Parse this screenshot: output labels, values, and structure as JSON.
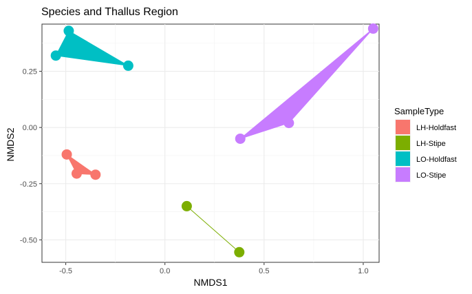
{
  "chart_data": {
    "type": "scatter",
    "title": "Species and Thallus Region",
    "xlabel": "NMDS1",
    "ylabel": "NMDS2",
    "xlim": [
      -0.62,
      1.08
    ],
    "ylim": [
      -0.6,
      0.46
    ],
    "x_ticks": [
      -0.5,
      0.0,
      0.5,
      1.0
    ],
    "x_tick_labels": [
      "-0.5",
      "0.0",
      "0.5",
      "1.0"
    ],
    "y_ticks": [
      -0.5,
      -0.25,
      0.0,
      0.25
    ],
    "y_tick_labels": [
      "-0.50",
      "-0.25",
      "0.00",
      "0.25"
    ],
    "grid": true,
    "legend": {
      "title": "SampleType",
      "placement": "right"
    },
    "series": [
      {
        "name": "LH-Holdfast",
        "color": "#F8766D",
        "points": [
          [
            -0.495,
            -0.12
          ],
          [
            -0.445,
            -0.205
          ],
          [
            -0.35,
            -0.21
          ]
        ]
      },
      {
        "name": "LH-Stipe",
        "color": "#7CAE00",
        "points": [
          [
            0.11,
            -0.35
          ],
          [
            0.375,
            -0.555
          ]
        ]
      },
      {
        "name": "LO-Holdfast",
        "color": "#00BFC4",
        "points": [
          [
            -0.485,
            0.43
          ],
          [
            -0.55,
            0.32
          ],
          [
            -0.185,
            0.275
          ]
        ]
      },
      {
        "name": "LO-Stipe",
        "color": "#C77CFF",
        "points": [
          [
            1.05,
            0.44
          ],
          [
            0.625,
            0.02
          ],
          [
            0.38,
            -0.05
          ]
        ]
      }
    ]
  }
}
